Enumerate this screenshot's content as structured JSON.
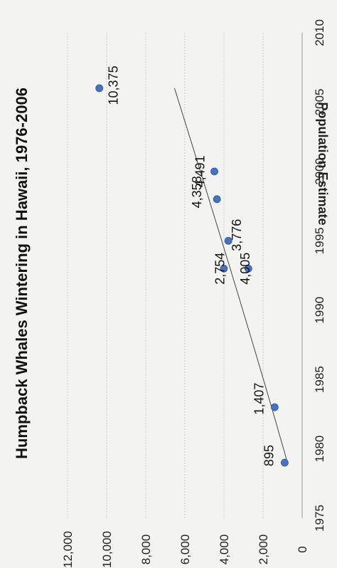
{
  "chart_data": {
    "type": "scatter",
    "title": "Humpback Whales Wintering in Hawaii, 1976-2006",
    "xlabel": "",
    "ylabel": "Population Estimate",
    "xlim": [
      1975,
      2010
    ],
    "ylim": [
      0,
      12000
    ],
    "x_ticks": [
      1975,
      1980,
      1985,
      1990,
      1995,
      2000,
      2005,
      2010
    ],
    "y_ticks": [
      0,
      2000,
      4000,
      6000,
      8000,
      10000,
      12000
    ],
    "x_tick_labels": [
      "1975",
      "1980",
      "1985",
      "1990",
      "1995",
      "2000",
      "2005",
      "2010"
    ],
    "y_tick_labels": [
      "0",
      "2,000",
      "4,000",
      "6,000",
      "8,000",
      "10,000",
      "12,000"
    ],
    "grid": true,
    "legend": "none",
    "marker_color": "#4472c4",
    "trendline": {
      "type": "power",
      "color": "#444444",
      "x_range": [
        1979,
        2006
      ]
    },
    "series": [
      {
        "points": [
          {
            "x": 1979,
            "y": 895,
            "label": "895"
          },
          {
            "x": 1983,
            "y": 1407,
            "label": "1,407"
          },
          {
            "x": 1993,
            "y": 4005,
            "label": "4,005"
          },
          {
            "x": 1993,
            "y": 2754,
            "label": "2,754"
          },
          {
            "x": 1995,
            "y": 3776,
            "label": "3,776"
          },
          {
            "x": 1998,
            "y": 4358,
            "label": "4,358"
          },
          {
            "x": 2000,
            "y": 4491,
            "label": "4,491"
          },
          {
            "x": 2006,
            "y": 10375,
            "label": "10,375"
          }
        ]
      }
    ]
  }
}
